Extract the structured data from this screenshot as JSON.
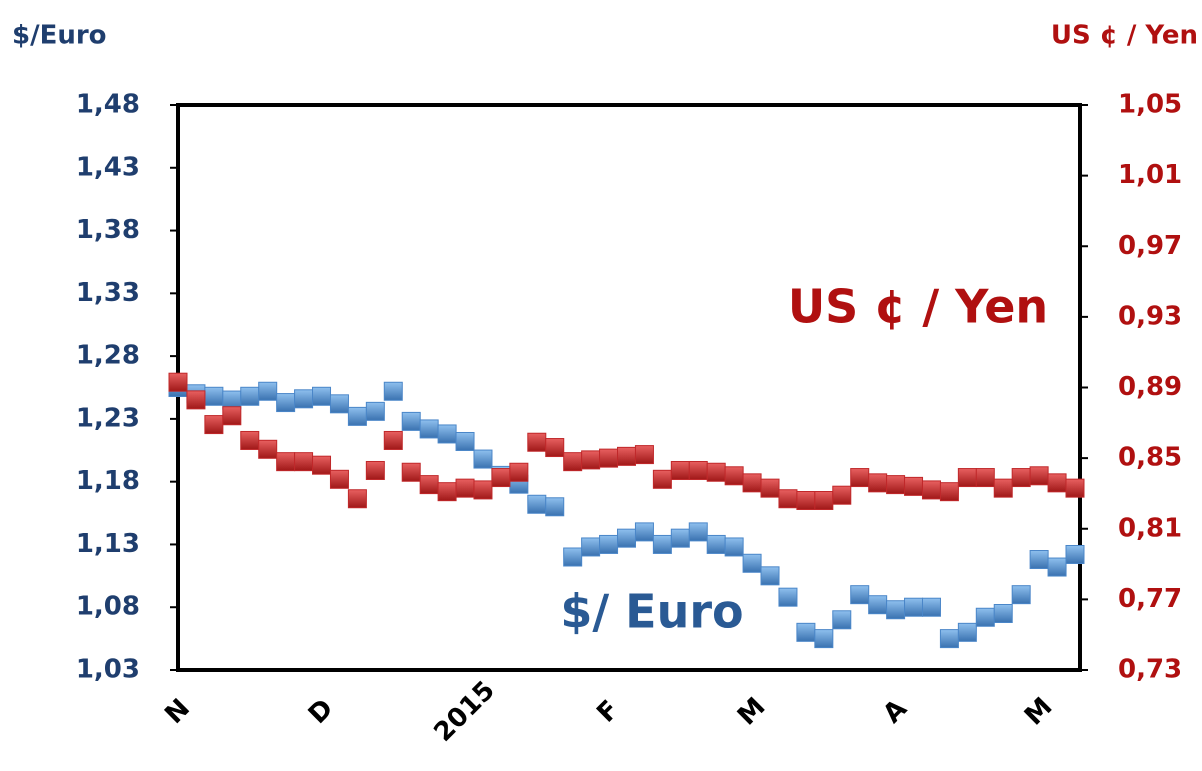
{
  "chart_data": {
    "type": "line",
    "y_title": "$/Euro",
    "y2_title": "US ¢ / Yen",
    "annotations": [
      {
        "text": "US ¢ / Yen",
        "series": 1
      },
      {
        "text": "$/ Euro",
        "series": 0
      }
    ],
    "categories": [
      "N",
      null,
      null,
      null,
      null,
      null,
      null,
      null,
      "D",
      null,
      null,
      null,
      null,
      null,
      null,
      null,
      "2015",
      null,
      null,
      null,
      null,
      null,
      null,
      null,
      "F",
      null,
      null,
      null,
      null,
      null,
      null,
      null,
      "M",
      null,
      null,
      null,
      null,
      null,
      null,
      null,
      "A",
      null,
      null,
      null,
      null,
      null,
      null,
      null,
      "M",
      null,
      null
    ],
    "series": [
      {
        "name": "$/Euro",
        "color": "#4a86c8",
        "values": [
          1.255,
          1.25,
          1.248,
          1.245,
          1.248,
          1.252,
          1.243,
          1.246,
          1.248,
          1.242,
          1.232,
          1.236,
          1.252,
          1.228,
          1.222,
          1.218,
          1.212,
          1.198,
          1.185,
          1.178,
          1.162,
          1.16,
          1.12,
          1.128,
          1.13,
          1.135,
          1.14,
          1.13,
          1.135,
          1.14,
          1.13,
          1.128,
          1.115,
          1.105,
          1.088,
          1.06,
          1.055,
          1.07,
          1.09,
          1.082,
          1.078,
          1.08,
          1.08,
          1.055,
          1.06,
          1.072,
          1.075,
          1.09,
          1.118,
          1.112,
          1.122
        ]
      },
      {
        "name": "US ¢ / Yen",
        "color": "#c0282a",
        "axis": "y2",
        "values": [
          0.893,
          0.883,
          0.869,
          0.874,
          0.86,
          0.855,
          0.848,
          0.848,
          0.846,
          0.838,
          0.827,
          0.843,
          0.86,
          0.842,
          0.835,
          0.831,
          0.833,
          0.832,
          0.839,
          0.842,
          0.859,
          0.856,
          0.848,
          0.849,
          0.85,
          0.851,
          0.852,
          0.838,
          0.843,
          0.843,
          0.842,
          0.84,
          0.836,
          0.833,
          0.827,
          0.826,
          0.826,
          0.829,
          0.839,
          0.836,
          0.835,
          0.834,
          0.832,
          0.831,
          0.839,
          0.839,
          0.833,
          0.839,
          0.84,
          0.836,
          0.833
        ]
      }
    ],
    "ylim": [
      1.03,
      1.48
    ],
    "yticks": [
      {
        "value": 1.03,
        "label": "1,03"
      },
      {
        "value": 1.08,
        "label": "1,08"
      },
      {
        "value": 1.13,
        "label": "1,13"
      },
      {
        "value": 1.18,
        "label": "1,18"
      },
      {
        "value": 1.23,
        "label": "1,23"
      },
      {
        "value": 1.28,
        "label": "1,28"
      },
      {
        "value": 1.33,
        "label": "1,33"
      },
      {
        "value": 1.38,
        "label": "1,38"
      },
      {
        "value": 1.43,
        "label": "1,43"
      },
      {
        "value": 1.48,
        "label": "1,48"
      }
    ],
    "y2lim": [
      0.73,
      1.05
    ],
    "y2ticks": [
      {
        "value": 0.73,
        "label": "0,73"
      },
      {
        "value": 0.77,
        "label": "0,77"
      },
      {
        "value": 0.81,
        "label": "0,81"
      },
      {
        "value": 0.85,
        "label": "0,85"
      },
      {
        "value": 0.89,
        "label": "0,89"
      },
      {
        "value": 0.93,
        "label": "0,93"
      },
      {
        "value": 0.97,
        "label": "0,97"
      },
      {
        "value": 1.01,
        "label": "1,01"
      },
      {
        "value": 1.05,
        "label": "1,05"
      }
    ],
    "grid": false
  }
}
